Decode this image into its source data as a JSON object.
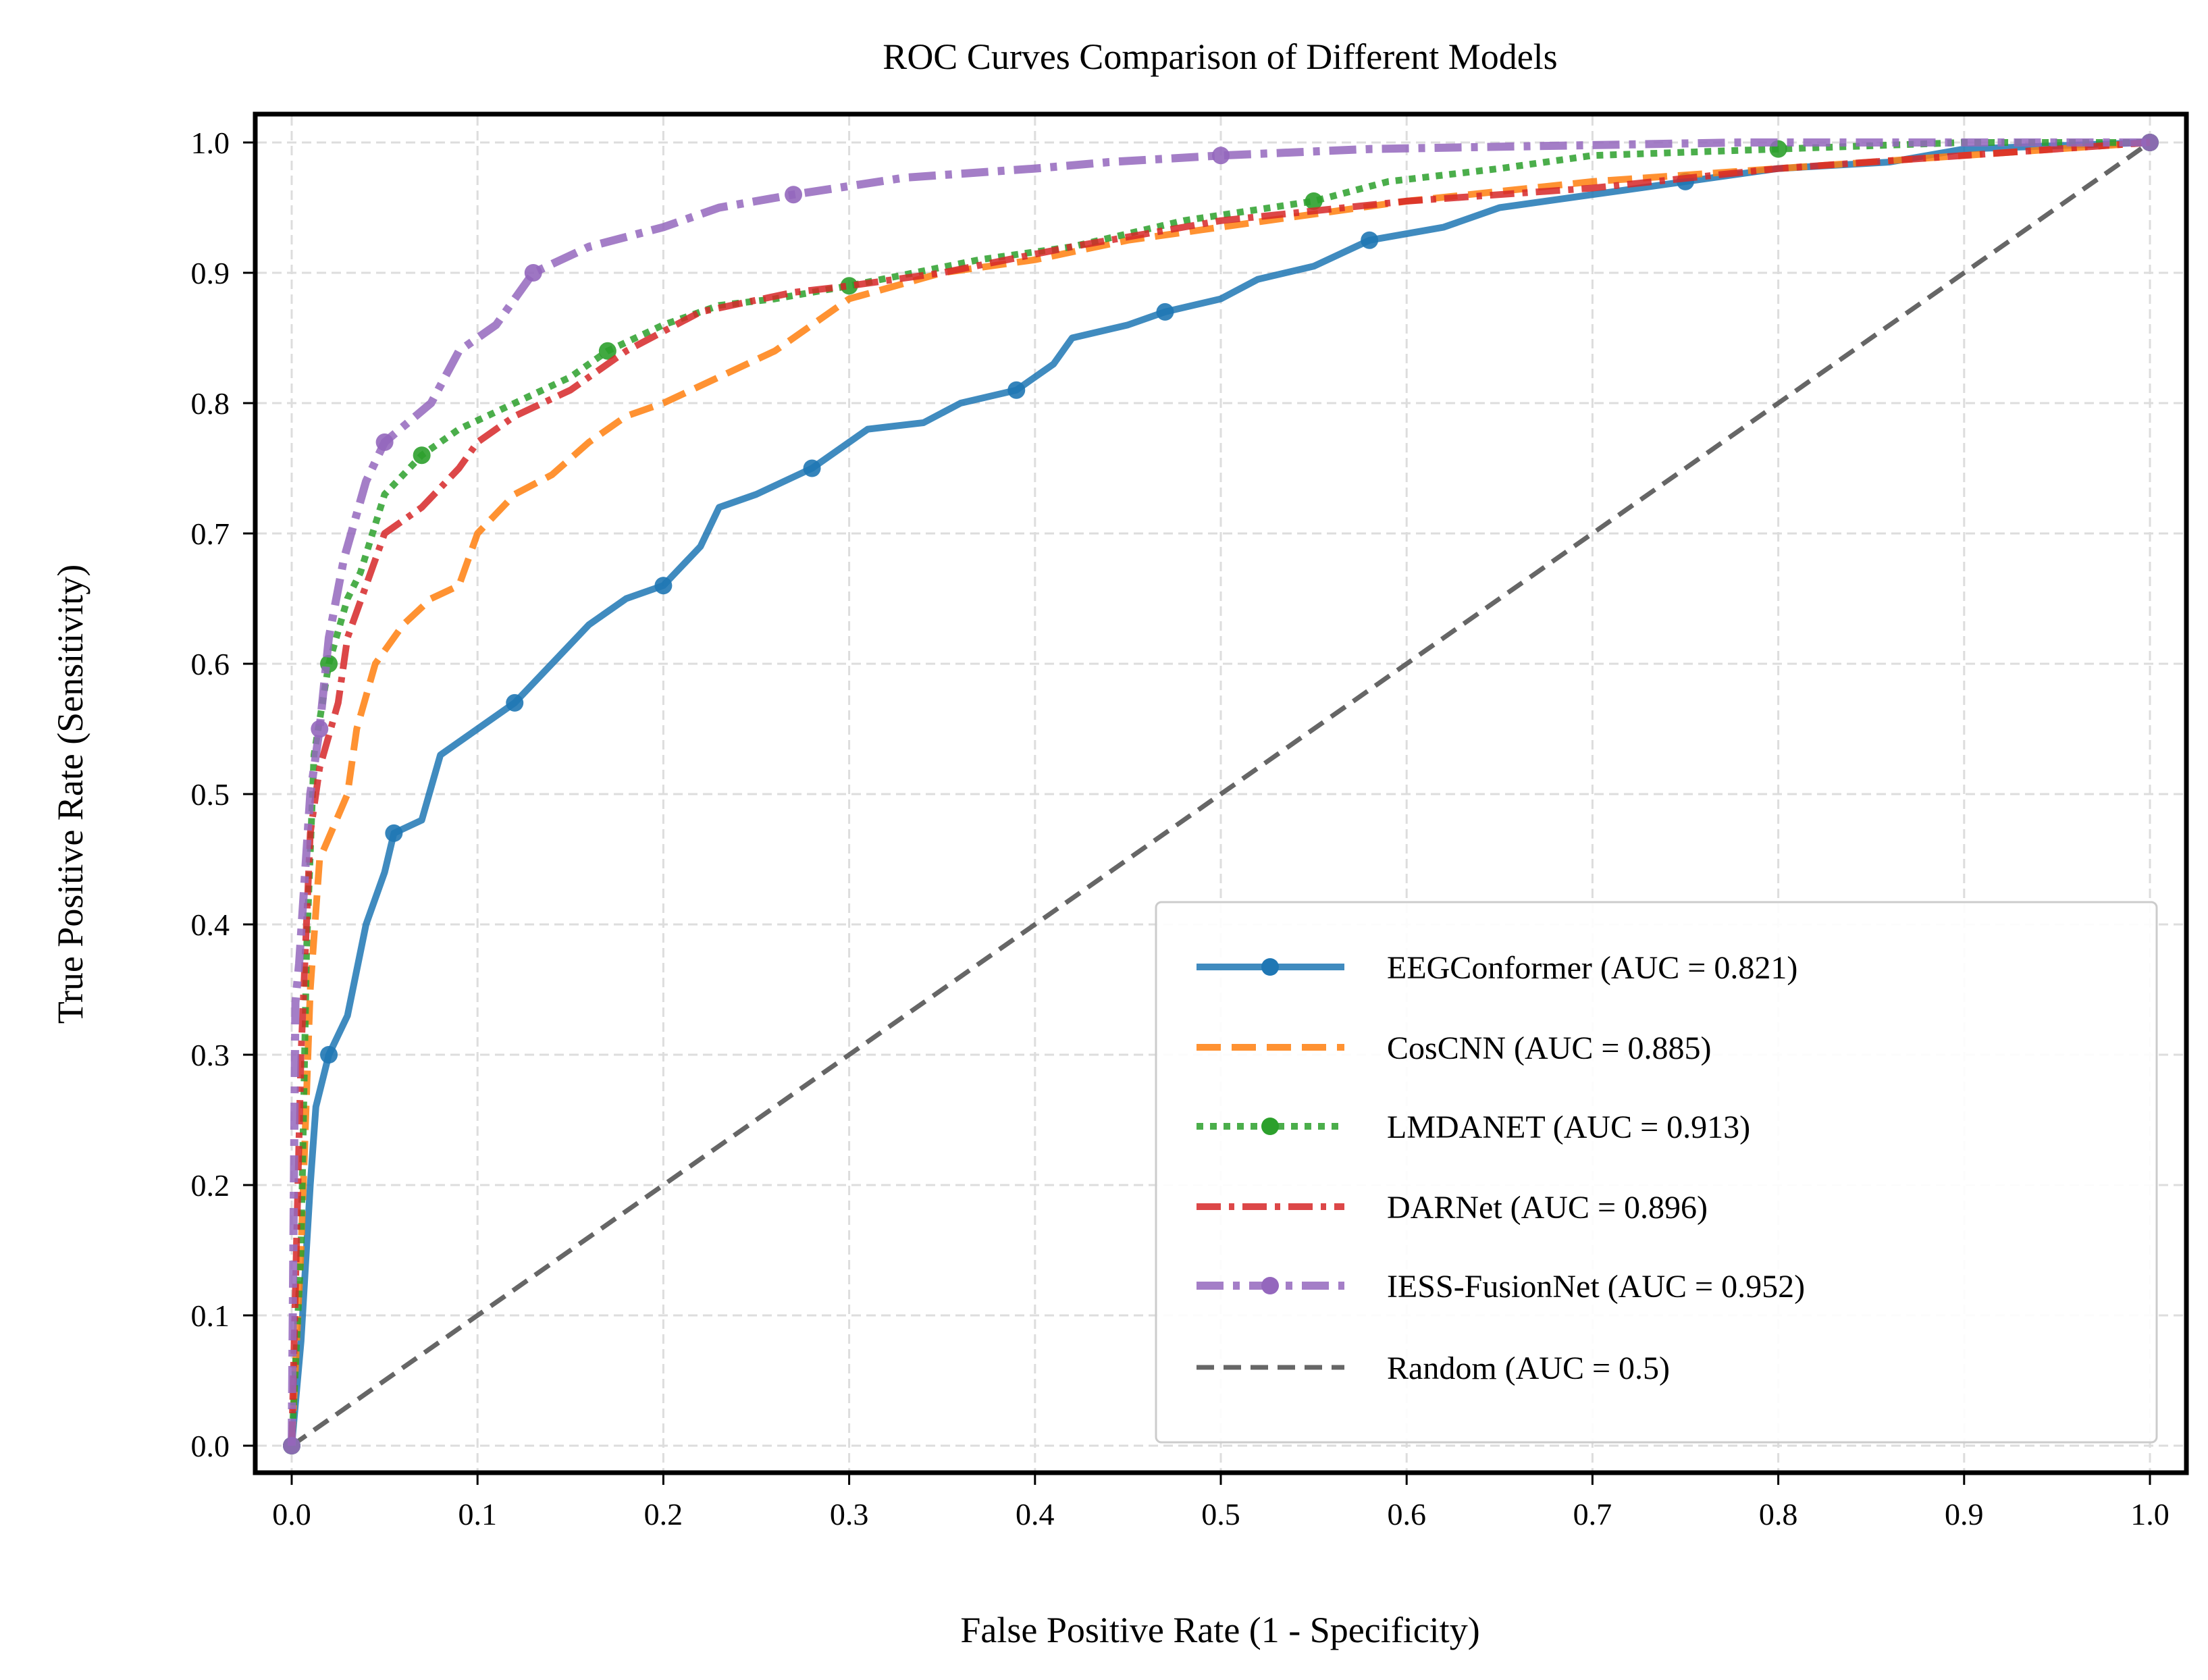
{
  "chart_data": {
    "type": "line",
    "title": "ROC Curves Comparison of Different Models",
    "xlabel": "False Positive Rate (1 - Specificity)",
    "ylabel": "True Positive Rate (Sensitivity)",
    "xlim": [
      0,
      1
    ],
    "ylim": [
      0,
      1
    ],
    "xticks": [
      "0.0",
      "0.1",
      "0.2",
      "0.3",
      "0.4",
      "0.5",
      "0.6",
      "0.7",
      "0.8",
      "0.9",
      "1.0"
    ],
    "yticks": [
      "0.0",
      "0.1",
      "0.2",
      "0.3",
      "0.4",
      "0.5",
      "0.6",
      "0.7",
      "0.8",
      "0.9",
      "1.0"
    ],
    "grid": true,
    "legend_position": "bottom-right",
    "series": [
      {
        "name": "EEGConformer (AUC = 0.821)",
        "color": "#1f77b4",
        "style": "solid-marker",
        "x": [
          0,
          0.005,
          0.01,
          0.013,
          0.02,
          0.03,
          0.04,
          0.05,
          0.055,
          0.07,
          0.08,
          0.1,
          0.12,
          0.14,
          0.16,
          0.18,
          0.2,
          0.22,
          0.23,
          0.25,
          0.28,
          0.31,
          0.34,
          0.36,
          0.39,
          0.41,
          0.42,
          0.45,
          0.47,
          0.5,
          0.52,
          0.55,
          0.58,
          0.62,
          0.65,
          0.7,
          0.75,
          0.8,
          0.86,
          0.9,
          1
        ],
        "y": [
          0,
          0.08,
          0.2,
          0.26,
          0.3,
          0.33,
          0.4,
          0.44,
          0.47,
          0.48,
          0.53,
          0.55,
          0.57,
          0.6,
          0.63,
          0.65,
          0.66,
          0.69,
          0.72,
          0.73,
          0.75,
          0.78,
          0.785,
          0.8,
          0.81,
          0.83,
          0.85,
          0.86,
          0.87,
          0.88,
          0.895,
          0.905,
          0.925,
          0.935,
          0.95,
          0.96,
          0.97,
          0.98,
          0.985,
          0.995,
          1
        ]
      },
      {
        "name": "CosCNN (AUC = 0.885)",
        "color": "#ff7f0e",
        "style": "dashed",
        "x": [
          0,
          0.005,
          0.01,
          0.015,
          0.03,
          0.035,
          0.045,
          0.06,
          0.075,
          0.09,
          0.1,
          0.12,
          0.14,
          0.16,
          0.18,
          0.2,
          0.23,
          0.26,
          0.28,
          0.3,
          0.35,
          0.4,
          0.45,
          0.5,
          0.6,
          0.7,
          0.8,
          0.9,
          1
        ],
        "y": [
          0,
          0.15,
          0.35,
          0.45,
          0.5,
          0.55,
          0.6,
          0.63,
          0.65,
          0.66,
          0.7,
          0.73,
          0.745,
          0.77,
          0.79,
          0.8,
          0.82,
          0.84,
          0.86,
          0.88,
          0.9,
          0.91,
          0.925,
          0.935,
          0.955,
          0.97,
          0.98,
          0.99,
          1
        ]
      },
      {
        "name": "LMDANET (AUC = 0.913)",
        "color": "#2ca02c",
        "style": "dotted-marker",
        "x": [
          0,
          0.005,
          0.008,
          0.012,
          0.02,
          0.03,
          0.037,
          0.05,
          0.07,
          0.09,
          0.12,
          0.15,
          0.17,
          0.2,
          0.23,
          0.26,
          0.3,
          0.37,
          0.42,
          0.48,
          0.55,
          0.59,
          0.65,
          0.7,
          0.8,
          0.9,
          1
        ],
        "y": [
          0,
          0.15,
          0.38,
          0.53,
          0.6,
          0.65,
          0.67,
          0.73,
          0.76,
          0.78,
          0.8,
          0.82,
          0.84,
          0.86,
          0.875,
          0.88,
          0.89,
          0.91,
          0.92,
          0.94,
          0.955,
          0.97,
          0.98,
          0.99,
          0.995,
          1,
          1
        ]
      },
      {
        "name": "DARNet (AUC = 0.896)",
        "color": "#d62728",
        "style": "dashdot",
        "x": [
          0,
          0.005,
          0.01,
          0.015,
          0.025,
          0.03,
          0.04,
          0.05,
          0.07,
          0.09,
          0.1,
          0.12,
          0.15,
          0.18,
          0.22,
          0.27,
          0.3,
          0.35,
          0.42,
          0.5,
          0.6,
          0.7,
          0.8,
          0.9,
          1
        ],
        "y": [
          0,
          0.3,
          0.47,
          0.52,
          0.57,
          0.62,
          0.66,
          0.7,
          0.72,
          0.75,
          0.77,
          0.79,
          0.81,
          0.84,
          0.87,
          0.885,
          0.89,
          0.9,
          0.92,
          0.94,
          0.955,
          0.965,
          0.98,
          0.99,
          1
        ]
      },
      {
        "name": "IESS-FusionNet (AUC = 0.952)",
        "color": "#9467bd",
        "style": "dashdot-marker",
        "x": [
          0,
          0.002,
          0.004,
          0.01,
          0.015,
          0.02,
          0.028,
          0.04,
          0.05,
          0.075,
          0.09,
          0.11,
          0.13,
          0.16,
          0.2,
          0.23,
          0.27,
          0.33,
          0.4,
          0.44,
          0.5,
          0.58,
          0.7,
          0.78,
          1
        ],
        "y": [
          0,
          0.34,
          0.37,
          0.5,
          0.55,
          0.62,
          0.68,
          0.74,
          0.77,
          0.8,
          0.84,
          0.86,
          0.9,
          0.92,
          0.935,
          0.95,
          0.96,
          0.973,
          0.98,
          0.985,
          0.99,
          0.995,
          0.998,
          1,
          1
        ]
      },
      {
        "name": "Random (AUC = 0.5)",
        "color": "#555555",
        "style": "dashed",
        "x": [
          0,
          1
        ],
        "y": [
          0,
          1
        ]
      }
    ]
  }
}
